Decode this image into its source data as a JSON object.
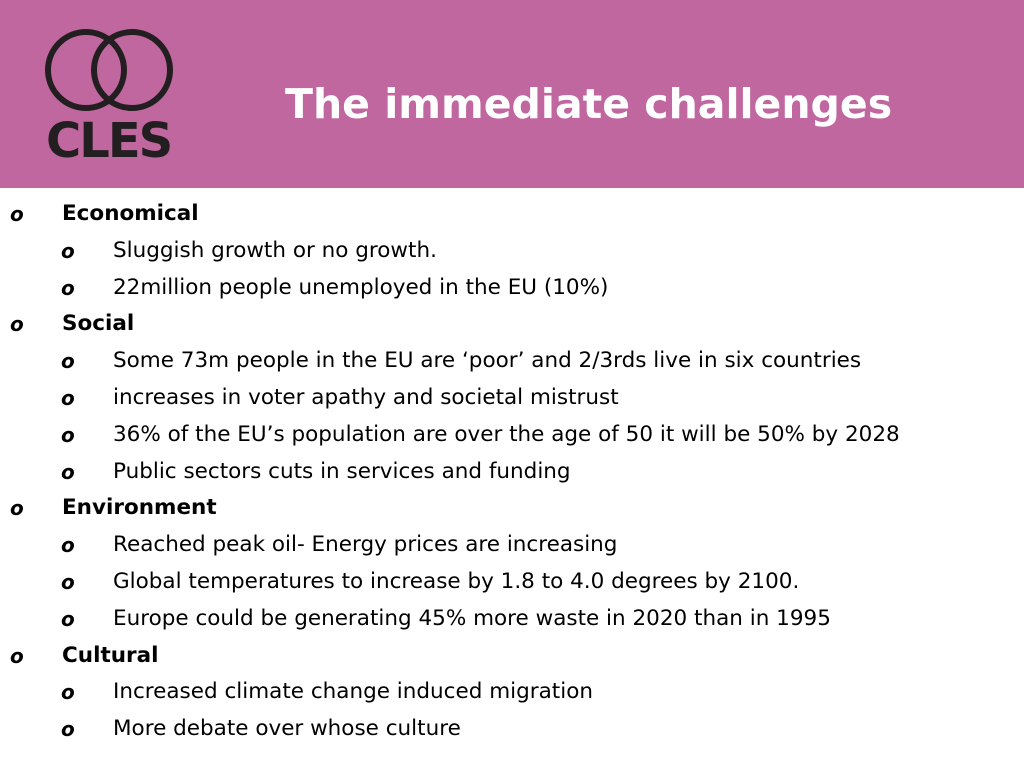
{
  "colors": {
    "header_background": "#c0679f",
    "title_text": "#ffffff",
    "logo": "#231f20",
    "body_text": "#000000"
  },
  "logo": {
    "text": "CLES",
    "icon": "two-interlocking-rings-icon"
  },
  "title": "The immediate challenges",
  "bullet_glyph": "o",
  "sections": [
    {
      "heading": "Economical",
      "items": [
        "Sluggish growth or no growth.",
        "22million people unemployed in the EU (10%)"
      ]
    },
    {
      "heading": "Social",
      "items": [
        "Some 73m people in the EU are ‘poor’ and 2/3rds live in six countries",
        "increases in voter apathy and societal mistrust",
        "36% of the EU’s population are over the age of 50 it will be 50% by 2028",
        "Public sectors cuts in services and funding"
      ]
    },
    {
      "heading": "Environment",
      "items": [
        "Reached peak oil- Energy prices are increasing",
        "Global temperatures to increase by 1.8 to 4.0 degrees by 2100.",
        "Europe could be generating 45% more waste in 2020 than in 1995"
      ]
    },
    {
      "heading": "Cultural",
      "items": [
        "Increased climate change induced migration",
        "More debate over whose culture"
      ]
    }
  ]
}
